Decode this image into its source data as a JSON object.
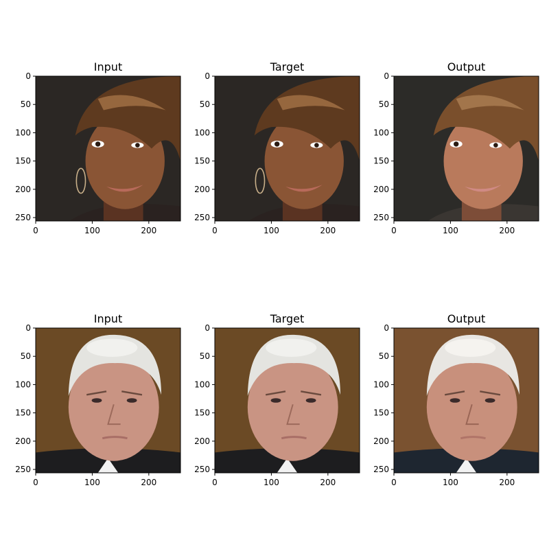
{
  "figure": {
    "background": "#ffffff",
    "axis_color": "#000000"
  },
  "chart_data": [
    {
      "type": "image",
      "row": 1,
      "col": 1,
      "title": "Input",
      "image_description": "young woman with brown swept bangs, hoop earring, smiling",
      "xlim": [
        0,
        256
      ],
      "ylim": [
        256,
        0
      ],
      "xticks": [
        0,
        100,
        200
      ],
      "yticks": [
        0,
        50,
        100,
        150,
        200,
        250
      ],
      "palette": {
        "background": "#2b2724",
        "skin": "#8a5535",
        "skin_shadow": "#5a3322",
        "hair": "#5e3a1f",
        "hair_light": "#a9774a",
        "lips": "#b86a5a",
        "clothing": "#2a2220"
      }
    },
    {
      "type": "image",
      "row": 1,
      "col": 2,
      "title": "Target",
      "image_description": "same woman, target image",
      "xlim": [
        0,
        256
      ],
      "ylim": [
        256,
        0
      ],
      "xticks": [
        0,
        100,
        200
      ],
      "yticks": [
        0,
        50,
        100,
        150,
        200,
        250
      ],
      "palette": {
        "background": "#2b2724",
        "skin": "#8a5535",
        "skin_shadow": "#5a3322",
        "hair": "#5e3a1f",
        "hair_light": "#a9774a",
        "lips": "#b86a5a",
        "clothing": "#2a2220"
      }
    },
    {
      "type": "image",
      "row": 1,
      "col": 3,
      "title": "Output",
      "image_description": "generated woman face, lighter skin, brown bangs",
      "xlim": [
        0,
        256
      ],
      "ylim": [
        256,
        0
      ],
      "xticks": [
        0,
        100,
        200
      ],
      "yticks": [
        0,
        50,
        100,
        150,
        200,
        250
      ],
      "palette": {
        "background": "#2c2b28",
        "skin": "#b97a5c",
        "skin_shadow": "#7d4d38",
        "hair": "#7a4f2c",
        "hair_light": "#b08256",
        "lips": "#d08a84",
        "clothing": "#3a3632"
      }
    },
    {
      "type": "image",
      "row": 2,
      "col": 1,
      "title": "Input",
      "image_description": "older man with white hair, dark suit, serious expression",
      "xlim": [
        0,
        256
      ],
      "ylim": [
        256,
        0
      ],
      "xticks": [
        0,
        100,
        200
      ],
      "yticks": [
        0,
        50,
        100,
        150,
        200,
        250
      ],
      "palette": {
        "background": "#6b4a25",
        "skin": "#c99483",
        "skin_shadow": "#9c6a5b",
        "hair": "#e4e4e0",
        "hair_light": "#f4f4f1",
        "lips": "#a86e66",
        "clothing": "#1d1d1f"
      }
    },
    {
      "type": "image",
      "row": 2,
      "col": 2,
      "title": "Target",
      "image_description": "same man, target image",
      "xlim": [
        0,
        256
      ],
      "ylim": [
        256,
        0
      ],
      "xticks": [
        0,
        100,
        200
      ],
      "yticks": [
        0,
        50,
        100,
        150,
        200,
        250
      ],
      "palette": {
        "background": "#6b4a25",
        "skin": "#c99483",
        "skin_shadow": "#9c6a5b",
        "hair": "#e4e4e0",
        "hair_light": "#f4f4f1",
        "lips": "#a86e66",
        "clothing": "#1d1d1f"
      }
    },
    {
      "type": "image",
      "row": 2,
      "col": 3,
      "title": "Output",
      "image_description": "generated man face, white hair, blurred brown background",
      "xlim": [
        0,
        256
      ],
      "ylim": [
        256,
        0
      ],
      "xticks": [
        0,
        100,
        200
      ],
      "yticks": [
        0,
        50,
        100,
        150,
        200,
        250
      ],
      "palette": {
        "background": "#7a5230",
        "skin": "#c8907c",
        "skin_shadow": "#9a6656",
        "hair": "#e8e6e2",
        "hair_light": "#f7f6f3",
        "lips": "#b07468",
        "clothing": "#1e2630"
      }
    }
  ]
}
